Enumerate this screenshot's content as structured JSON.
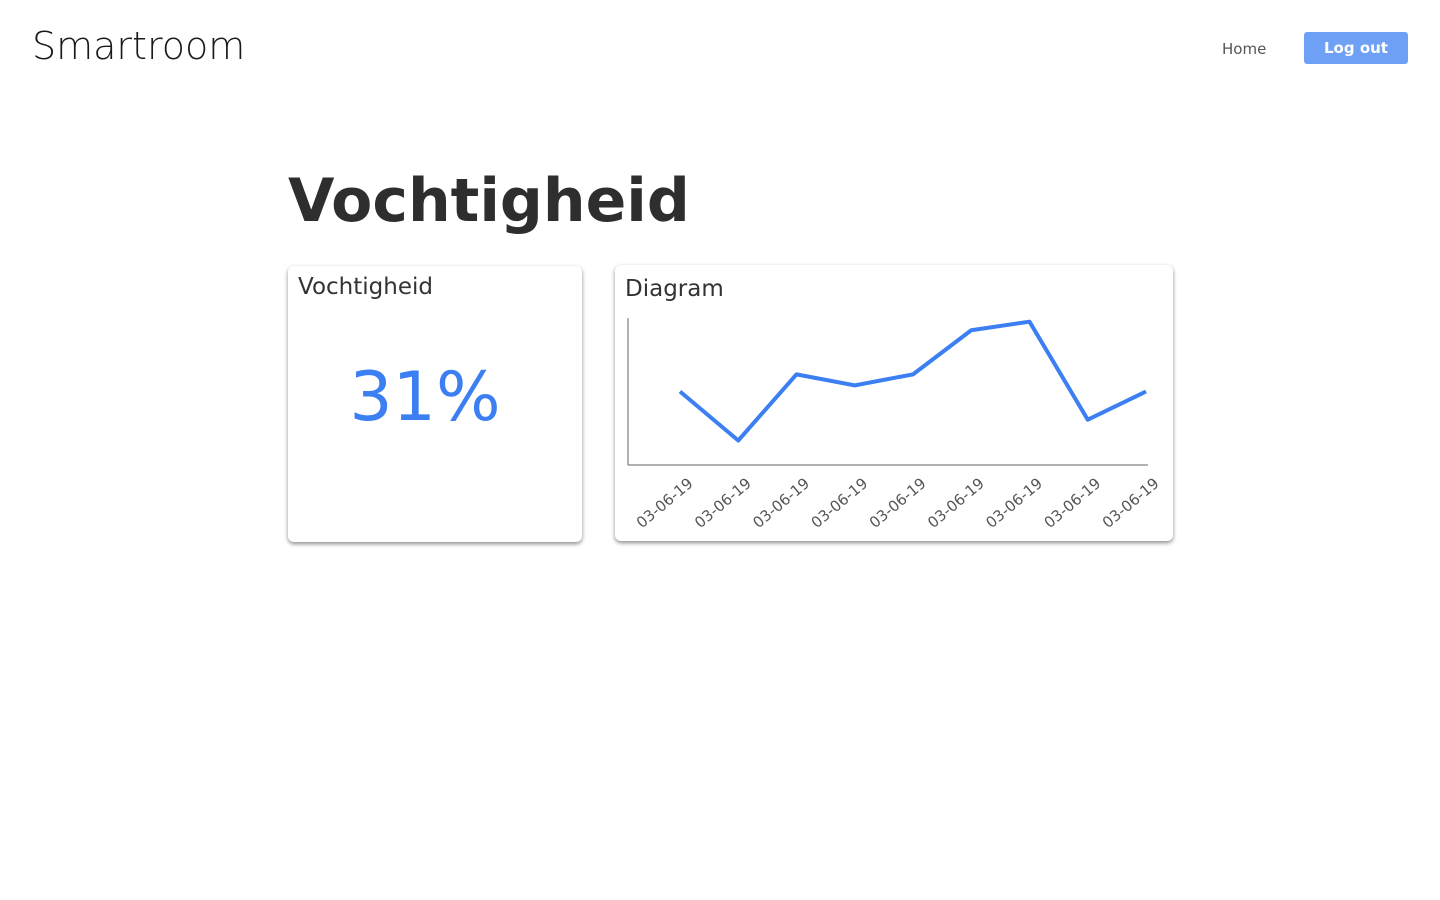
{
  "header": {
    "brand": "Smartroom",
    "nav": [
      "Home",
      "Log out"
    ]
  },
  "page_title": "Vochtigheid",
  "current": {
    "title": "Vochtigheid",
    "value": "31%"
  },
  "chart_card": {
    "title": "Diagram"
  },
  "chart_data": {
    "type": "line",
    "categories": [
      "03-06-19",
      "03-06-19",
      "03-06-19",
      "03-06-19",
      "03-06-19",
      "03-06-19",
      "03-06-19",
      "03-06-19",
      "03-06-19"
    ],
    "values": [
      31,
      27,
      32.4,
      31.5,
      32.4,
      36,
      36.7,
      28.7,
      31
    ],
    "color": "#3b7ff2",
    "ylim": [
      25,
      37
    ]
  }
}
